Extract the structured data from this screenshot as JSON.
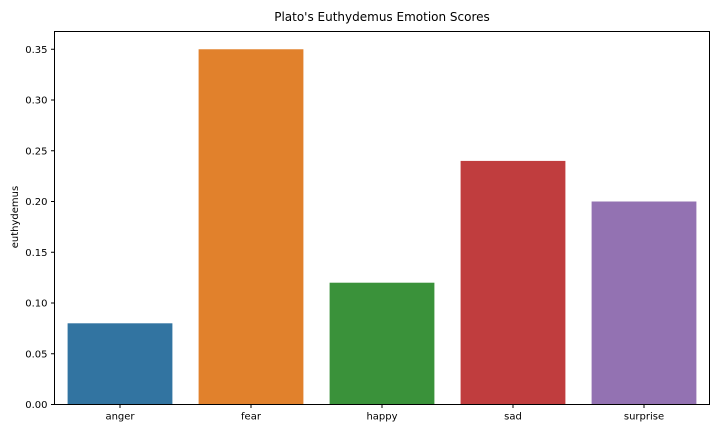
{
  "chart_data": {
    "type": "bar",
    "title": "Plato's Euthydemus Emotion Scores",
    "xlabel": "",
    "ylabel": "euthydemus",
    "categories": [
      "anger",
      "fear",
      "happy",
      "sad",
      "surprise"
    ],
    "values": [
      0.08,
      0.35,
      0.12,
      0.24,
      0.2
    ],
    "colors": [
      "#3274a1",
      "#e1812c",
      "#3a923a",
      "#c03d3e",
      "#9372b2"
    ],
    "ylim": [
      0,
      0.3675
    ],
    "yticks": [
      "0.00",
      "0.05",
      "0.10",
      "0.15",
      "0.20",
      "0.25",
      "0.30",
      "0.35"
    ],
    "grid": false,
    "legend": "none"
  }
}
